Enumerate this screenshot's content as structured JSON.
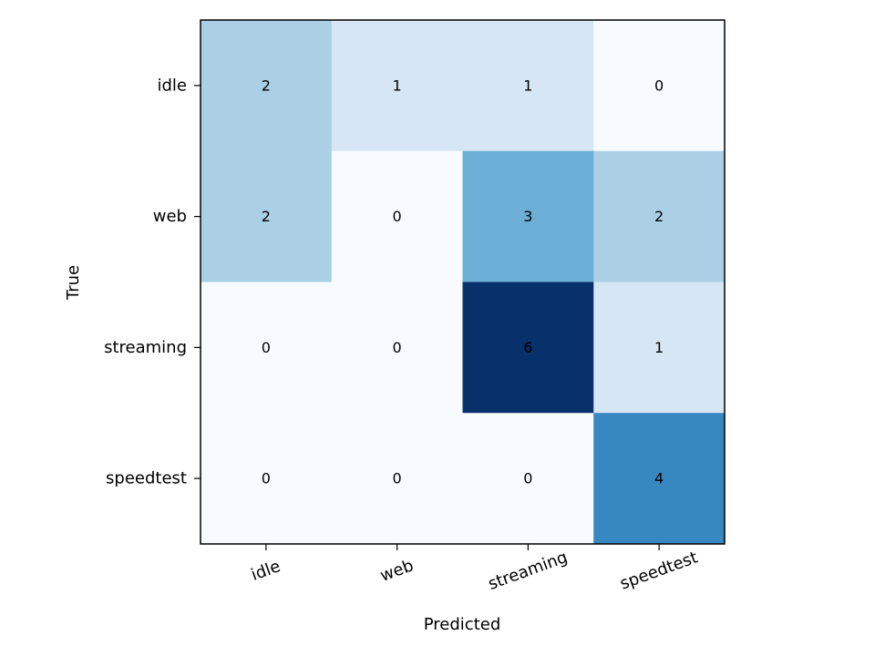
{
  "chart_data": {
    "type": "heatmap",
    "title": "",
    "xlabel": "Predicted",
    "ylabel": "True",
    "x_categories": [
      "idle",
      "web",
      "streaming",
      "speedtest"
    ],
    "y_categories": [
      "idle",
      "web",
      "streaming",
      "speedtest"
    ],
    "values": [
      [
        2,
        1,
        1,
        0
      ],
      [
        2,
        0,
        3,
        2
      ],
      [
        0,
        0,
        6,
        1
      ],
      [
        0,
        0,
        0,
        4
      ]
    ],
    "value_range": [
      0,
      6
    ],
    "colormap": "Blues",
    "colormap_stops": [
      "#f7fbff",
      "#deebf7",
      "#c6dbef",
      "#9ecae1",
      "#6baed6",
      "#4292c6",
      "#2171b5",
      "#08519c",
      "#08306b"
    ],
    "x_tick_rotation_deg": -20,
    "grid": false,
    "colorbar": false,
    "legend": "none"
  }
}
